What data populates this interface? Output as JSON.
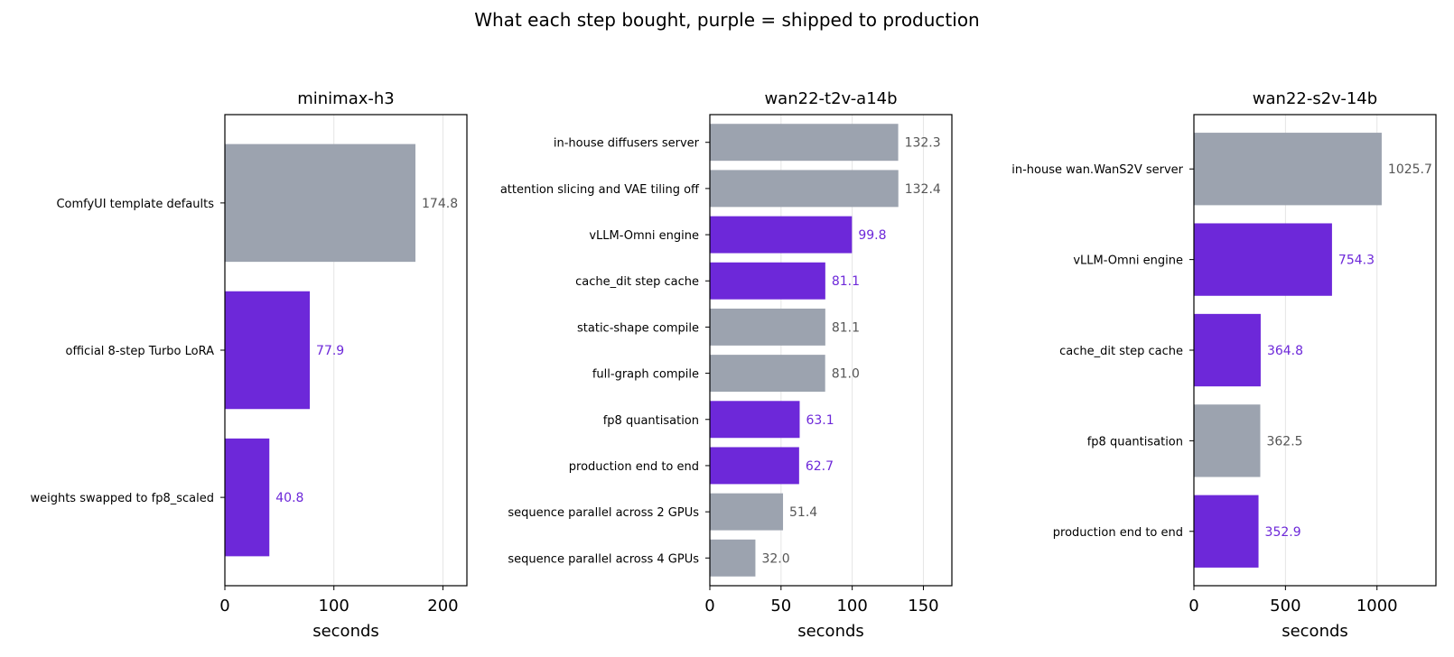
{
  "suptitle": "What each step bought, purple = shipped to production",
  "colors": {
    "shipped": "#6d28d9",
    "other": "#9ca3af",
    "other_label": "#555555",
    "grid": "#e5e5e5"
  },
  "chart_data": [
    {
      "type": "bar",
      "orientation": "horizontal",
      "title": "minimax-h3",
      "xlabel": "seconds",
      "xlim": [
        0,
        222
      ],
      "xticks": [
        0,
        100,
        200
      ],
      "grid": true,
      "bars": [
        {
          "label": "ComfyUI template defaults",
          "value": 174.8,
          "value_label": "174.8",
          "shipped": false
        },
        {
          "label": "official 8-step Turbo LoRA",
          "value": 77.9,
          "value_label": "77.9",
          "shipped": true
        },
        {
          "label": "weights swapped to fp8_scaled",
          "value": 40.8,
          "value_label": "40.8",
          "shipped": true
        }
      ]
    },
    {
      "type": "bar",
      "orientation": "horizontal",
      "title": "wan22-t2v-a14b",
      "xlabel": "seconds",
      "xlim": [
        0,
        170
      ],
      "xticks": [
        0,
        50,
        100,
        150
      ],
      "grid": true,
      "bars": [
        {
          "label": "in-house diffusers server",
          "value": 132.3,
          "value_label": "132.3",
          "shipped": false
        },
        {
          "label": "attention slicing and VAE tiling off",
          "value": 132.4,
          "value_label": "132.4",
          "shipped": false
        },
        {
          "label": "vLLM-Omni engine",
          "value": 99.8,
          "value_label": "99.8",
          "shipped": true
        },
        {
          "label": "cache_dit step cache",
          "value": 81.1,
          "value_label": "81.1",
          "shipped": true
        },
        {
          "label": "static-shape compile",
          "value": 81.1,
          "value_label": "81.1",
          "shipped": false
        },
        {
          "label": "full-graph compile",
          "value": 81.0,
          "value_label": "81.0",
          "shipped": false
        },
        {
          "label": "fp8 quantisation",
          "value": 63.1,
          "value_label": "63.1",
          "shipped": true
        },
        {
          "label": "production end to end",
          "value": 62.7,
          "value_label": "62.7",
          "shipped": true
        },
        {
          "label": "sequence parallel across 2 GPUs",
          "value": 51.4,
          "value_label": "51.4",
          "shipped": false
        },
        {
          "label": "sequence parallel across 4 GPUs",
          "value": 32.0,
          "value_label": "32.0",
          "shipped": false
        }
      ]
    },
    {
      "type": "bar",
      "orientation": "horizontal",
      "title": "wan22-s2v-14b",
      "xlabel": "seconds",
      "xlim": [
        0,
        1322
      ],
      "xticks": [
        0,
        500,
        1000
      ],
      "grid": true,
      "bars": [
        {
          "label": "in-house wan.WanS2V server",
          "value": 1025.7,
          "value_label": "1025.7",
          "shipped": false
        },
        {
          "label": "vLLM-Omni engine",
          "value": 754.3,
          "value_label": "754.3",
          "shipped": true
        },
        {
          "label": "cache_dit step cache",
          "value": 364.8,
          "value_label": "364.8",
          "shipped": true
        },
        {
          "label": "fp8 quantisation",
          "value": 362.5,
          "value_label": "362.5",
          "shipped": false
        },
        {
          "label": "production end to end",
          "value": 352.9,
          "value_label": "352.9",
          "shipped": true
        }
      ]
    }
  ]
}
